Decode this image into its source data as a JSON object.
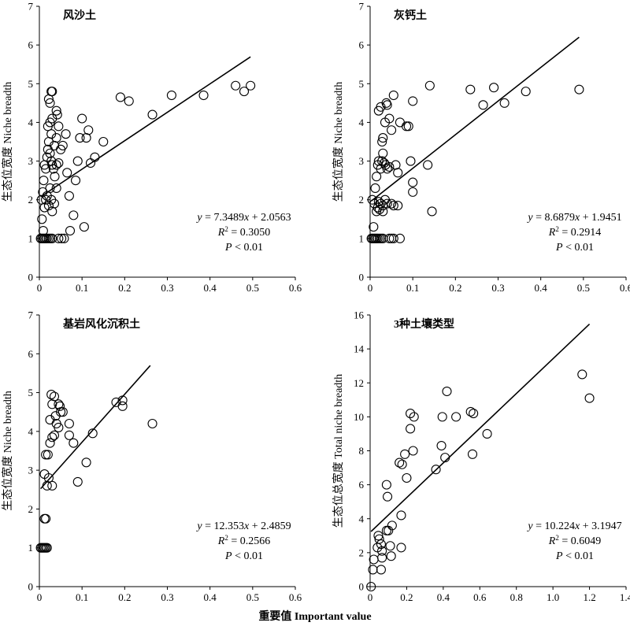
{
  "figure": {
    "shared_xlabel": "重要值 Important value"
  },
  "chart_data": [
    {
      "type": "scatter",
      "title": "风沙土",
      "xlabel": "",
      "ylabel": "生态位宽度 Niche breadth",
      "xlim": [
        0,
        0.6
      ],
      "ylim": [
        0,
        7
      ],
      "xticks": [
        "0",
        "0.1",
        "0.2",
        "0.3",
        "0.4",
        "0.5",
        "0.6"
      ],
      "yticks": [
        "0",
        "1",
        "2",
        "3",
        "4",
        "5",
        "6",
        "7"
      ],
      "equation": "y = 7.3489x + 2.0563",
      "r2": "R² = 0.3050",
      "p": "P < 0.01",
      "fit": {
        "slope": 7.3489,
        "intercept": 2.0563,
        "x_range": [
          0.003,
          0.495
        ]
      },
      "points": [
        [
          0.003,
          1.0
        ],
        [
          0.006,
          1.0
        ],
        [
          0.009,
          1.0
        ],
        [
          0.012,
          1.0
        ],
        [
          0.015,
          1.0
        ],
        [
          0.018,
          1.0
        ],
        [
          0.022,
          1.0
        ],
        [
          0.026,
          1.0
        ],
        [
          0.03,
          1.0
        ],
        [
          0.045,
          1.0
        ],
        [
          0.052,
          1.0
        ],
        [
          0.058,
          1.0
        ],
        [
          0.006,
          1.5
        ],
        [
          0.009,
          1.2
        ],
        [
          0.012,
          1.8
        ],
        [
          0.015,
          2.0
        ],
        [
          0.018,
          2.1
        ],
        [
          0.022,
          1.85
        ],
        [
          0.025,
          2.3
        ],
        [
          0.028,
          2.0
        ],
        [
          0.03,
          1.7
        ],
        [
          0.035,
          1.9
        ],
        [
          0.04,
          2.3
        ],
        [
          0.005,
          2.0
        ],
        [
          0.008,
          2.2
        ],
        [
          0.01,
          2.5
        ],
        [
          0.012,
          2.9
        ],
        [
          0.015,
          2.8
        ],
        [
          0.018,
          3.1
        ],
        [
          0.02,
          3.3
        ],
        [
          0.022,
          3.5
        ],
        [
          0.025,
          3.2
        ],
        [
          0.028,
          3.0
        ],
        [
          0.03,
          2.9
        ],
        [
          0.033,
          2.8
        ],
        [
          0.036,
          2.6
        ],
        [
          0.04,
          2.9
        ],
        [
          0.045,
          2.95
        ],
        [
          0.02,
          3.9
        ],
        [
          0.025,
          4.0
        ],
        [
          0.028,
          3.7
        ],
        [
          0.03,
          4.1
        ],
        [
          0.035,
          3.4
        ],
        [
          0.04,
          3.6
        ],
        [
          0.045,
          3.9
        ],
        [
          0.022,
          4.6
        ],
        [
          0.025,
          4.5
        ],
        [
          0.028,
          4.8
        ],
        [
          0.03,
          4.8
        ],
        [
          0.04,
          4.3
        ],
        [
          0.042,
          4.2
        ],
        [
          0.05,
          3.3
        ],
        [
          0.055,
          3.4
        ],
        [
          0.062,
          3.7
        ],
        [
          0.065,
          2.7
        ],
        [
          0.07,
          2.1
        ],
        [
          0.08,
          1.6
        ],
        [
          0.085,
          2.5
        ],
        [
          0.09,
          3.0
        ],
        [
          0.095,
          3.6
        ],
        [
          0.1,
          4.1
        ],
        [
          0.11,
          3.6
        ],
        [
          0.115,
          3.8
        ],
        [
          0.12,
          2.95
        ],
        [
          0.13,
          3.1
        ],
        [
          0.15,
          3.5
        ],
        [
          0.19,
          4.65
        ],
        [
          0.21,
          4.55
        ],
        [
          0.265,
          4.2
        ],
        [
          0.31,
          4.7
        ],
        [
          0.385,
          4.7
        ],
        [
          0.46,
          4.95
        ],
        [
          0.48,
          4.8
        ],
        [
          0.495,
          4.95
        ],
        [
          0.072,
          1.2
        ],
        [
          0.105,
          1.3
        ]
      ]
    },
    {
      "type": "scatter",
      "title": "灰钙土",
      "xlabel": "",
      "ylabel": "生态位宽度 Niche breadth",
      "xlim": [
        0,
        0.6
      ],
      "ylim": [
        0,
        7
      ],
      "xticks": [
        "0",
        "0.1",
        "0.2",
        "0.3",
        "0.4",
        "0.5",
        "0.6"
      ],
      "yticks": [
        "0",
        "1",
        "2",
        "3",
        "4",
        "5",
        "6",
        "7"
      ],
      "equation": "y = 8.6879x + 1.9451",
      "r2": "R² = 0.2914",
      "p": "P < 0.01",
      "fit": {
        "slope": 8.6879,
        "intercept": 1.9451,
        "x_range": [
          0.003,
          0.49
        ]
      },
      "points": [
        [
          0.003,
          1.0
        ],
        [
          0.006,
          1.0
        ],
        [
          0.009,
          1.0
        ],
        [
          0.012,
          1.0
        ],
        [
          0.015,
          1.0
        ],
        [
          0.018,
          1.0
        ],
        [
          0.022,
          1.0
        ],
        [
          0.026,
          1.0
        ],
        [
          0.03,
          1.0
        ],
        [
          0.045,
          1.0
        ],
        [
          0.05,
          1.0
        ],
        [
          0.055,
          1.0
        ],
        [
          0.07,
          1.0
        ],
        [
          0.005,
          2.0
        ],
        [
          0.01,
          1.9
        ],
        [
          0.015,
          1.7
        ],
        [
          0.018,
          1.8
        ],
        [
          0.02,
          1.95
        ],
        [
          0.022,
          1.75
        ],
        [
          0.025,
          1.9
        ],
        [
          0.03,
          1.85
        ],
        [
          0.035,
          2.0
        ],
        [
          0.04,
          1.9
        ],
        [
          0.05,
          1.9
        ],
        [
          0.055,
          1.85
        ],
        [
          0.065,
          1.85
        ],
        [
          0.012,
          2.3
        ],
        [
          0.015,
          2.6
        ],
        [
          0.018,
          2.9
        ],
        [
          0.02,
          3.0
        ],
        [
          0.025,
          2.8
        ],
        [
          0.028,
          3.0
        ],
        [
          0.03,
          3.2
        ],
        [
          0.033,
          2.95
        ],
        [
          0.036,
          2.9
        ],
        [
          0.04,
          2.8
        ],
        [
          0.045,
          2.85
        ],
        [
          0.06,
          2.9
        ],
        [
          0.065,
          2.7
        ],
        [
          0.02,
          4.3
        ],
        [
          0.025,
          4.4
        ],
        [
          0.028,
          3.5
        ],
        [
          0.03,
          3.6
        ],
        [
          0.035,
          4.0
        ],
        [
          0.038,
          4.5
        ],
        [
          0.04,
          4.45
        ],
        [
          0.045,
          4.1
        ],
        [
          0.05,
          3.8
        ],
        [
          0.055,
          4.7
        ],
        [
          0.07,
          4.0
        ],
        [
          0.085,
          3.9
        ],
        [
          0.09,
          3.9
        ],
        [
          0.095,
          3.0
        ],
        [
          0.1,
          2.45
        ],
        [
          0.1,
          2.2
        ],
        [
          0.1,
          4.55
        ],
        [
          0.135,
          2.9
        ],
        [
          0.14,
          4.95
        ],
        [
          0.145,
          1.7
        ],
        [
          0.235,
          4.85
        ],
        [
          0.265,
          4.45
        ],
        [
          0.29,
          4.9
        ],
        [
          0.315,
          4.5
        ],
        [
          0.365,
          4.8
        ],
        [
          0.49,
          4.85
        ],
        [
          0.008,
          1.3
        ],
        [
          0.03,
          1.7
        ]
      ]
    },
    {
      "type": "scatter",
      "title": "基岩风化沉积土",
      "xlabel": "",
      "ylabel": "生态位宽度 Niche breadth",
      "xlim": [
        0,
        0.6
      ],
      "ylim": [
        0,
        7
      ],
      "xticks": [
        "0",
        "0.1",
        "0.2",
        "0.3",
        "0.4",
        "0.5",
        "0.6"
      ],
      "yticks": [
        "0",
        "1",
        "2",
        "3",
        "4",
        "5",
        "6",
        "7"
      ],
      "equation": "y = 12.353x + 2.4859",
      "r2": "R² = 0.2566",
      "p": "P < 0.01",
      "fit": {
        "slope": 12.353,
        "intercept": 2.4859,
        "x_range": [
          0.003,
          0.26
        ]
      },
      "points": [
        [
          0.003,
          1.0
        ],
        [
          0.006,
          1.0
        ],
        [
          0.009,
          1.0
        ],
        [
          0.012,
          1.0
        ],
        [
          0.015,
          1.0
        ],
        [
          0.018,
          1.0
        ],
        [
          0.012,
          1.75
        ],
        [
          0.015,
          1.75
        ],
        [
          0.012,
          2.9
        ],
        [
          0.018,
          2.6
        ],
        [
          0.022,
          2.8
        ],
        [
          0.03,
          2.6
        ],
        [
          0.015,
          3.4
        ],
        [
          0.02,
          3.4
        ],
        [
          0.025,
          3.7
        ],
        [
          0.03,
          3.85
        ],
        [
          0.035,
          3.9
        ],
        [
          0.025,
          4.3
        ],
        [
          0.03,
          4.7
        ],
        [
          0.035,
          4.9
        ],
        [
          0.038,
          4.4
        ],
        [
          0.045,
          4.7
        ],
        [
          0.05,
          4.5
        ],
        [
          0.04,
          4.2
        ],
        [
          0.045,
          4.1
        ],
        [
          0.028,
          4.95
        ],
        [
          0.055,
          4.5
        ],
        [
          0.07,
          3.9
        ],
        [
          0.08,
          3.7
        ],
        [
          0.07,
          4.2
        ],
        [
          0.09,
          2.7
        ],
        [
          0.11,
          3.2
        ],
        [
          0.125,
          3.95
        ],
        [
          0.18,
          4.75
        ],
        [
          0.195,
          4.8
        ],
        [
          0.195,
          4.65
        ],
        [
          0.265,
          4.2
        ],
        [
          0.048,
          4.65
        ]
      ]
    },
    {
      "type": "scatter",
      "title": "3种土壤类型",
      "xlabel": "",
      "ylabel": "生态位总宽度 Total niche breadth",
      "xlim": [
        0,
        1.4
      ],
      "ylim": [
        0,
        16
      ],
      "xticks": [
        "0",
        "0.2",
        "0.4",
        "0.6",
        "0.8",
        "1.0",
        "1.2",
        "1.4"
      ],
      "yticks": [
        "0",
        "2",
        "4",
        "6",
        "8",
        "10",
        "12",
        "14",
        "16"
      ],
      "equation": "y = 10.224x + 3.1947",
      "r2": "R² = 0.6049",
      "p": "P < 0.01",
      "fit": {
        "slope": 10.224,
        "intercept": 3.1947,
        "x_range": [
          0.005,
          1.2
        ]
      },
      "points": [
        [
          0.005,
          0.0
        ],
        [
          0.015,
          1.0
        ],
        [
          0.02,
          1.6
        ],
        [
          0.04,
          2.3
        ],
        [
          0.045,
          3.0
        ],
        [
          0.05,
          2.8
        ],
        [
          0.06,
          2.5
        ],
        [
          0.06,
          1.0
        ],
        [
          0.065,
          2.1
        ],
        [
          0.065,
          1.7
        ],
        [
          0.09,
          3.3
        ],
        [
          0.1,
          3.3
        ],
        [
          0.11,
          2.4
        ],
        [
          0.12,
          3.6
        ],
        [
          0.115,
          1.8
        ],
        [
          0.09,
          6.0
        ],
        [
          0.095,
          5.3
        ],
        [
          0.17,
          4.2
        ],
        [
          0.17,
          2.3
        ],
        [
          0.16,
          7.3
        ],
        [
          0.175,
          7.2
        ],
        [
          0.19,
          7.8
        ],
        [
          0.2,
          6.4
        ],
        [
          0.22,
          10.2
        ],
        [
          0.22,
          9.3
        ],
        [
          0.235,
          8.0
        ],
        [
          0.24,
          10.0
        ],
        [
          0.36,
          6.9
        ],
        [
          0.39,
          8.3
        ],
        [
          0.395,
          10.0
        ],
        [
          0.41,
          7.6
        ],
        [
          0.42,
          11.5
        ],
        [
          0.47,
          10.0
        ],
        [
          0.55,
          10.3
        ],
        [
          0.565,
          10.2
        ],
        [
          0.56,
          7.8
        ],
        [
          0.64,
          9.0
        ],
        [
          1.16,
          12.5
        ],
        [
          1.2,
          11.1
        ]
      ]
    }
  ]
}
